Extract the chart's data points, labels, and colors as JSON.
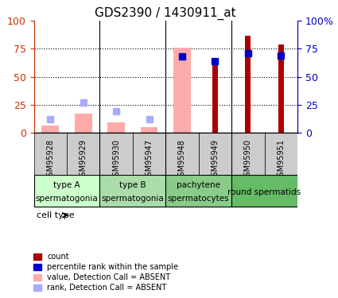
{
  "title": "GDS2390 / 1430911_at",
  "samples": [
    "GSM95928",
    "GSM95929",
    "GSM95930",
    "GSM95947",
    "GSM95948",
    "GSM95949",
    "GSM95950",
    "GSM95951"
  ],
  "count_values": [
    null,
    null,
    null,
    null,
    null,
    62,
    87,
    79
  ],
  "percentile_values": [
    null,
    null,
    null,
    null,
    68,
    64,
    71,
    69
  ],
  "absent_value_values": [
    6,
    17,
    9,
    5,
    76,
    null,
    null,
    null
  ],
  "absent_rank_values": [
    12,
    27,
    19,
    12,
    null,
    null,
    null,
    null
  ],
  "cell_types": [
    {
      "label": "type A\nspermatogonia",
      "start": 0,
      "end": 2,
      "color": "#ccffcc"
    },
    {
      "label": "type B\nspermatogonia",
      "start": 2,
      "end": 4,
      "color": "#99ee99"
    },
    {
      "label": "pachytene\nspermatocytes",
      "start": 4,
      "end": 6,
      "color": "#77dd77"
    },
    {
      "label": "round spermatids",
      "start": 6,
      "end": 8,
      "color": "#55cc55"
    }
  ],
  "ylim": [
    0,
    100
  ],
  "yticks": [
    0,
    25,
    50,
    75,
    100
  ],
  "bar_width": 0.35,
  "count_color": "#aa0000",
  "percentile_color": "#0000cc",
  "absent_value_color": "#ffaaaa",
  "absent_rank_color": "#aaaaff",
  "grid_color": "#000000",
  "axis_left_color": "#cc3300",
  "axis_right_color": "#0000cc",
  "legend_items": [
    {
      "label": "count",
      "color": "#aa0000",
      "marker": "s"
    },
    {
      "label": "percentile rank within the sample",
      "color": "#0000cc",
      "marker": "s"
    },
    {
      "label": "value, Detection Call = ABSENT",
      "color": "#ffaaaa",
      "marker": "s"
    },
    {
      "label": "rank, Detection Call = ABSENT",
      "color": "#aaaaff",
      "marker": "s"
    }
  ]
}
